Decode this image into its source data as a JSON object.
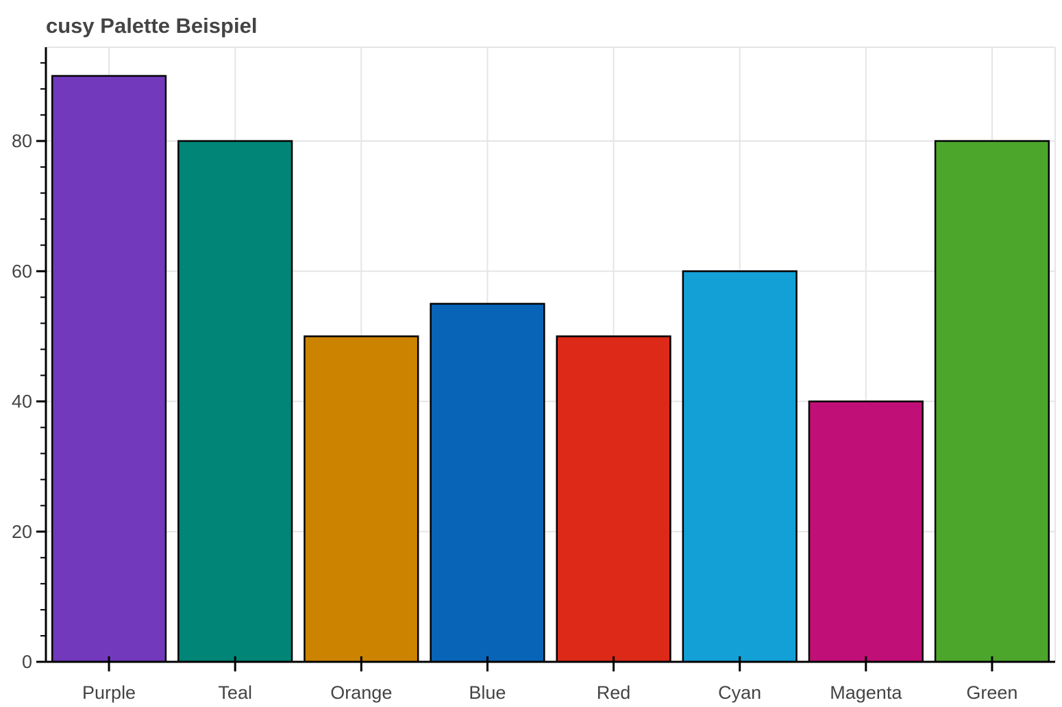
{
  "chart_data": {
    "type": "bar",
    "title": "cusy Palette Beispiel",
    "xlabel": "",
    "ylabel": "",
    "categories": [
      "Purple",
      "Teal",
      "Orange",
      "Blue",
      "Red",
      "Cyan",
      "Magenta",
      "Green"
    ],
    "values": [
      90,
      80,
      50,
      55,
      50,
      60,
      40,
      80
    ],
    "colors": [
      "#7239bc",
      "#008577",
      "#cc8400",
      "#0864b6",
      "#dc2918",
      "#13a0d6",
      "#c01077",
      "#4da62c"
    ],
    "ylim": [
      0,
      94
    ],
    "yticks": [
      0,
      20,
      40,
      60,
      80
    ],
    "ytick_labels": [
      "0",
      "20",
      "40",
      "60",
      "80"
    ],
    "grid": true,
    "legend": "none",
    "colors_style": {
      "grid": "#e5e5e5",
      "axis": "#000000",
      "text": "#444444",
      "bar_outline": "#000000",
      "background": "#ffffff"
    }
  }
}
